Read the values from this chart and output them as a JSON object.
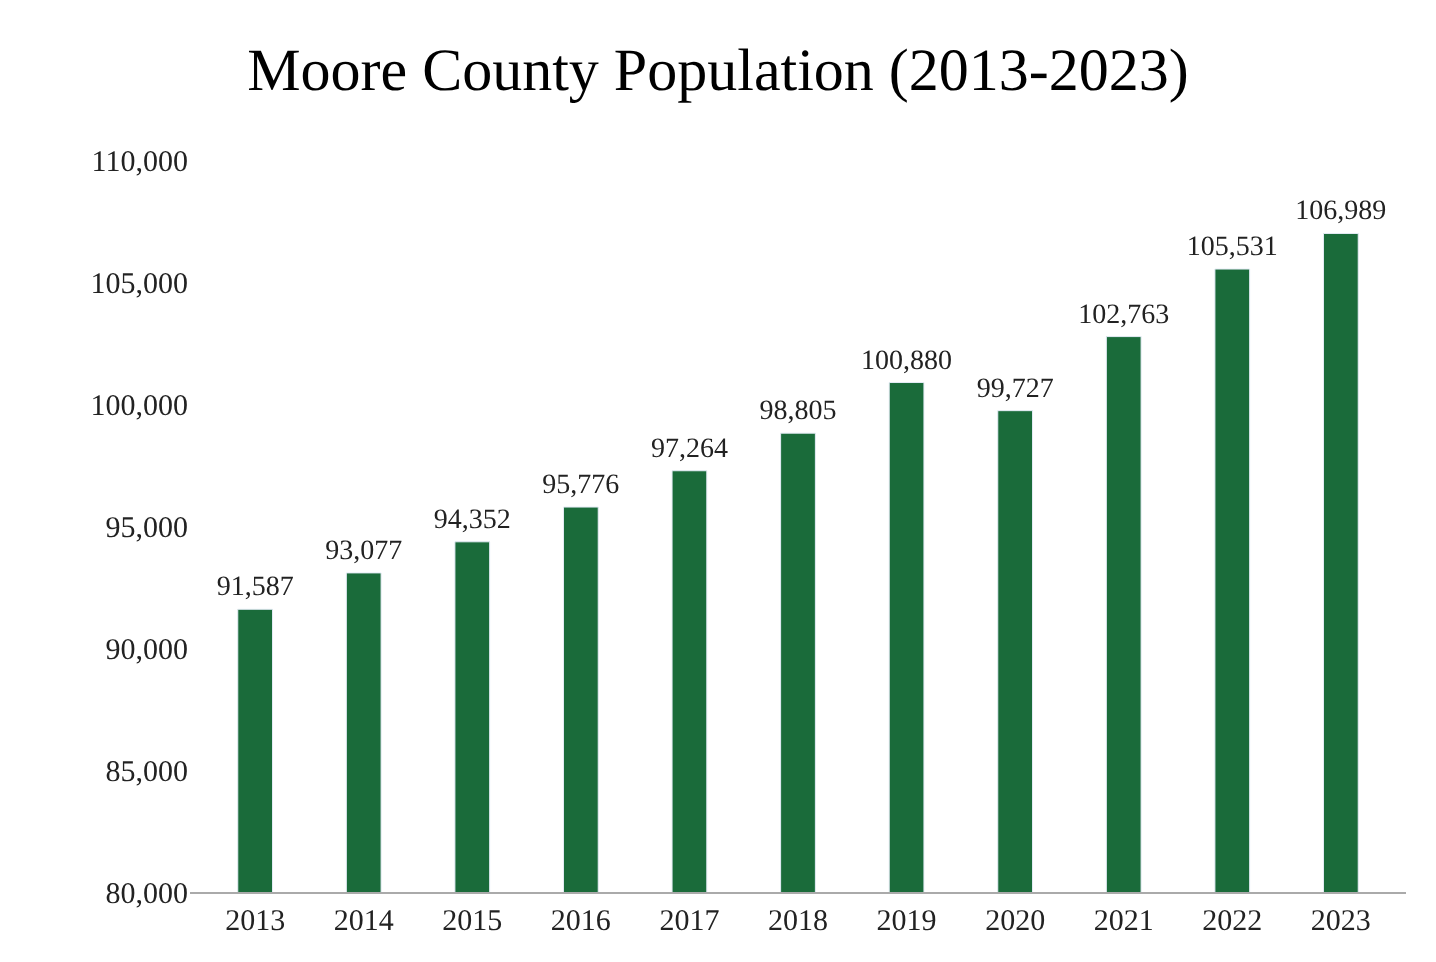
{
  "chart_data": {
    "type": "bar",
    "title": "Moore County Population (2013-2023)",
    "categories": [
      "2013",
      "2014",
      "2015",
      "2016",
      "2017",
      "2018",
      "2019",
      "2020",
      "2021",
      "2022",
      "2023"
    ],
    "values": [
      91587,
      93077,
      94352,
      95776,
      97264,
      98805,
      100880,
      99727,
      102763,
      105531,
      106989
    ],
    "color": "#1a6b3a",
    "ylim": [
      80000,
      110000
    ],
    "yticks": [
      {
        "value": 80000,
        "label": "80,000"
      },
      {
        "value": 85000,
        "label": "85,000"
      },
      {
        "value": 90000,
        "label": "90,000"
      },
      {
        "value": 95000,
        "label": "95,000"
      },
      {
        "value": 100000,
        "label": "100,000"
      },
      {
        "value": 105000,
        "label": "105,000"
      },
      {
        "value": 110000,
        "label": "110,000"
      }
    ],
    "value_labels": [
      "91,587",
      "93,077",
      "94,352",
      "95,776",
      "97,264",
      "98,805",
      "100,880",
      "99,727",
      "102,763",
      "105,531",
      "106,989"
    ]
  }
}
